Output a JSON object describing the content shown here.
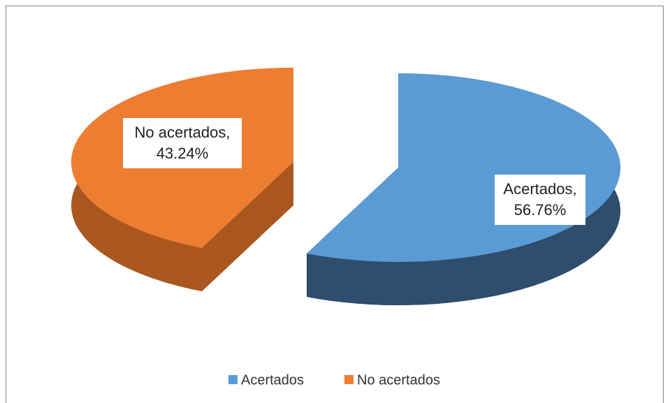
{
  "chart_data": {
    "type": "pie3d",
    "categories": [
      "Acertados",
      "No acertados"
    ],
    "values": [
      56.76,
      43.24
    ],
    "value_labels": [
      "Acertados, 56.76%",
      "No acertados, 43.24%"
    ],
    "colors": [
      "#5b9bd5",
      "#ed7d31"
    ],
    "side_colors": [
      "#2f4d6c",
      "#a9571f"
    ],
    "legend": "bottom"
  }
}
